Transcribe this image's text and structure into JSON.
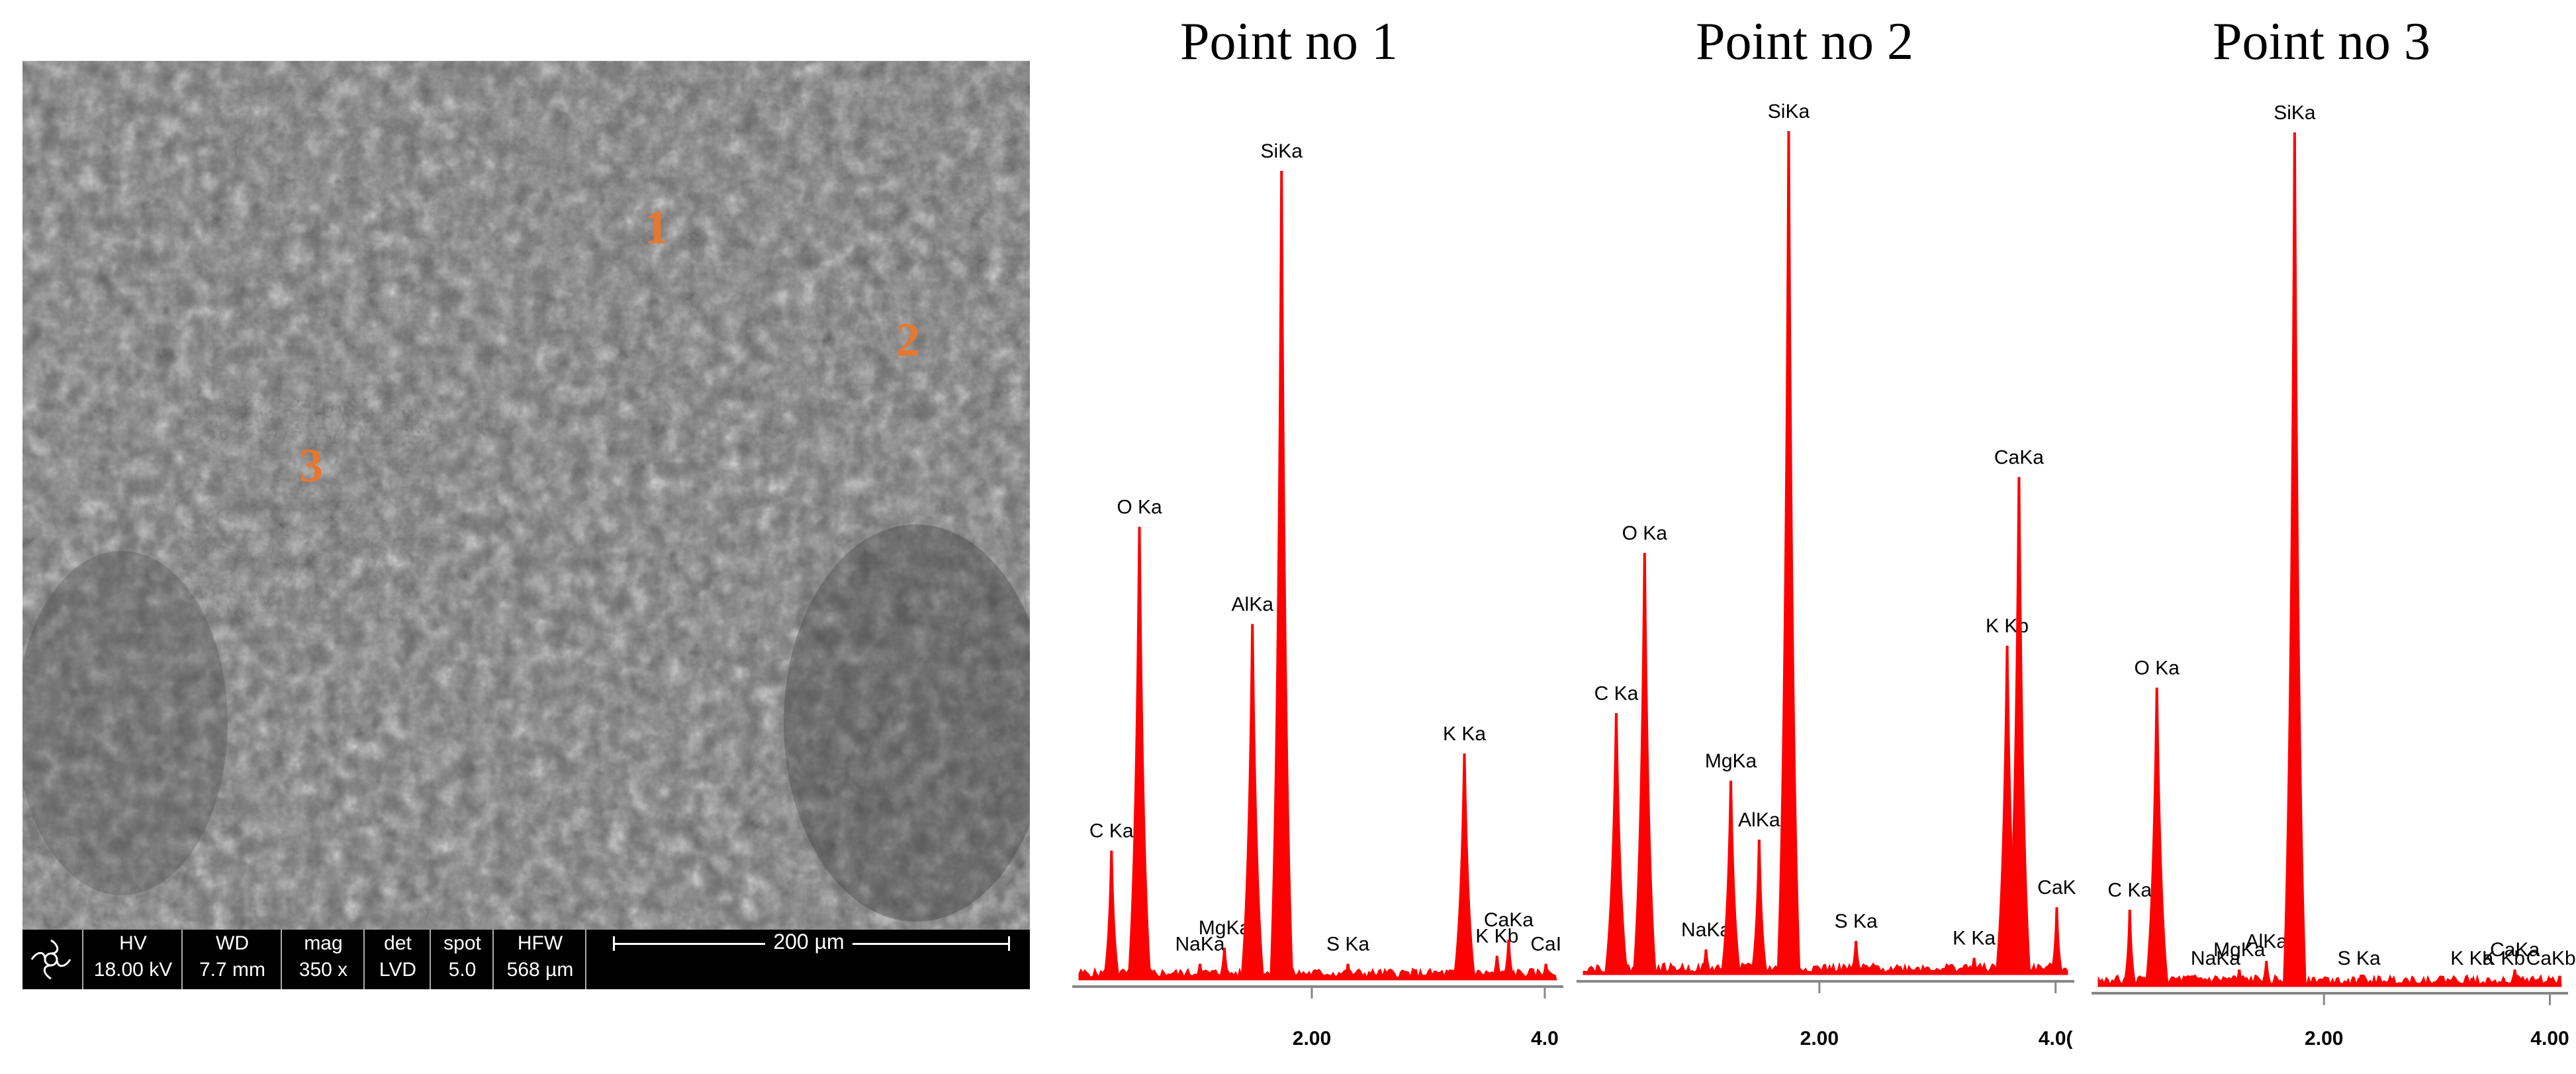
{
  "sem": {
    "markers": [
      {
        "label": "1",
        "color": "#e8772e"
      },
      {
        "label": "2",
        "color": "#e8772e"
      },
      {
        "label": "3",
        "color": "#e8772e"
      }
    ],
    "databar": {
      "headers": [
        "HV",
        "WD",
        "mag",
        "det",
        "spot",
        "HFW"
      ],
      "values": [
        "18.00 kV",
        "7.7 mm",
        "350 x",
        "LVD",
        "5.0",
        "568 µm"
      ],
      "scale_label": "200 µm"
    }
  },
  "chart_data": [
    {
      "type": "bar",
      "title": "Point no 1",
      "color": "#ff0000",
      "xlim": [
        0.0,
        4.0
      ],
      "x_ticks": [
        "2.00",
        "4.0"
      ],
      "peaks": [
        {
          "label": "C Ka",
          "x": 0.28,
          "height": 0.16
        },
        {
          "label": "O Ka",
          "x": 0.52,
          "height": 0.56
        },
        {
          "label": "NaKa",
          "x": 1.04,
          "height": 0.02
        },
        {
          "label": "MgKa",
          "x": 1.25,
          "height": 0.04
        },
        {
          "label": "AlKa",
          "x": 1.49,
          "height": 0.44
        },
        {
          "label": "SiKa",
          "x": 1.74,
          "height": 1.0
        },
        {
          "label": "S Ka",
          "x": 2.31,
          "height": 0.02
        },
        {
          "label": "K Ka",
          "x": 3.31,
          "height": 0.28
        },
        {
          "label": "K Kb",
          "x": 3.59,
          "height": 0.03
        },
        {
          "label": "CaKa",
          "x": 3.69,
          "height": 0.05
        },
        {
          "label": "CaI",
          "x": 4.01,
          "height": 0.02
        }
      ]
    },
    {
      "type": "bar",
      "title": "Point no 2",
      "color": "#ff0000",
      "xlim": [
        0.0,
        4.0
      ],
      "x_ticks": [
        "2.00",
        "4.0("
      ],
      "peaks": [
        {
          "label": "C Ka",
          "x": 0.28,
          "height": 0.31
        },
        {
          "label": "O Ka",
          "x": 0.52,
          "height": 0.5
        },
        {
          "label": "NaKa",
          "x": 1.04,
          "height": 0.03
        },
        {
          "label": "MgKa",
          "x": 1.25,
          "height": 0.23
        },
        {
          "label": "AlKa",
          "x": 1.49,
          "height": 0.16
        },
        {
          "label": "SiKa",
          "x": 1.74,
          "height": 1.0
        },
        {
          "label": "S Ka",
          "x": 2.31,
          "height": 0.04
        },
        {
          "label": "K Ka",
          "x": 3.31,
          "height": 0.02
        },
        {
          "label": "K Kb",
          "x": 3.59,
          "height": 0.39
        },
        {
          "label": "CaKa",
          "x": 3.69,
          "height": 0.59
        },
        {
          "label": "CaK",
          "x": 4.01,
          "height": 0.08
        }
      ]
    },
    {
      "type": "bar",
      "title": "Point no 3",
      "color": "#ff0000",
      "xlim": [
        0.0,
        4.0
      ],
      "x_ticks": [
        "2.00",
        "4.00"
      ],
      "peaks": [
        {
          "label": "C Ka",
          "x": 0.28,
          "height": 0.09
        },
        {
          "label": "O Ka",
          "x": 0.52,
          "height": 0.35
        },
        {
          "label": "NaKa",
          "x": 1.04,
          "height": 0.01
        },
        {
          "label": "MgKa",
          "x": 1.25,
          "height": 0.02
        },
        {
          "label": "AlKa",
          "x": 1.49,
          "height": 0.03
        },
        {
          "label": "SiKa",
          "x": 1.74,
          "height": 1.0
        },
        {
          "label": "S Ka",
          "x": 2.31,
          "height": 0.01
        },
        {
          "label": "K Ka",
          "x": 3.31,
          "height": 0.01
        },
        {
          "label": "K Kb",
          "x": 3.59,
          "height": 0.01
        },
        {
          "label": "CaKa",
          "x": 3.69,
          "height": 0.02
        },
        {
          "label": "CaKb",
          "x": 4.01,
          "height": 0.01
        }
      ]
    }
  ]
}
